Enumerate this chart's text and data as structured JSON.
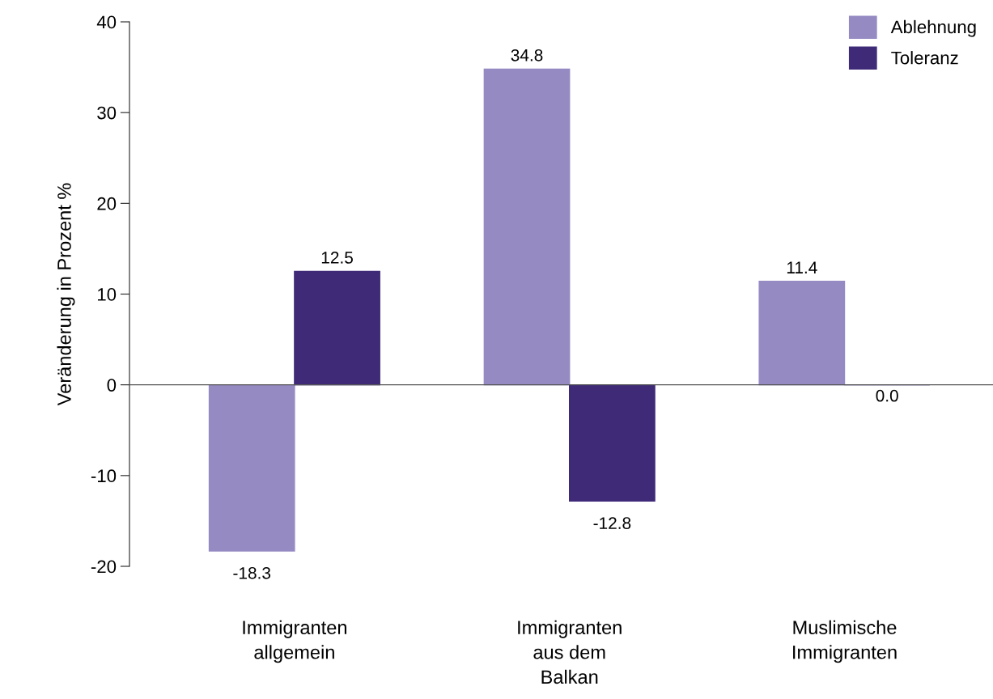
{
  "chart_data": {
    "type": "bar",
    "ylabel": "Veränderung in Prozent %",
    "categories": [
      "Immigranten\nallgemein",
      "Immigranten\naus dem\nBalkan",
      "Muslimische\nImmigranten"
    ],
    "series": [
      {
        "name": "Ablehnung",
        "color": "#968ac3",
        "values": [
          -18.3,
          34.8,
          11.4
        ],
        "value_labels": [
          "-18.3",
          "34.8",
          "11.4"
        ]
      },
      {
        "name": "Toleranz",
        "color": "#3f2a78",
        "values": [
          12.5,
          -12.8,
          0.0
        ],
        "value_labels": [
          "12.5",
          "-12.8",
          "0.0"
        ]
      }
    ],
    "ylim": [
      -20,
      40
    ],
    "yticks": [
      {
        "value": -20,
        "label": "-20"
      },
      {
        "value": -10,
        "label": "-10"
      },
      0,
      10,
      20,
      30,
      40
    ],
    "legend": "top right"
  }
}
